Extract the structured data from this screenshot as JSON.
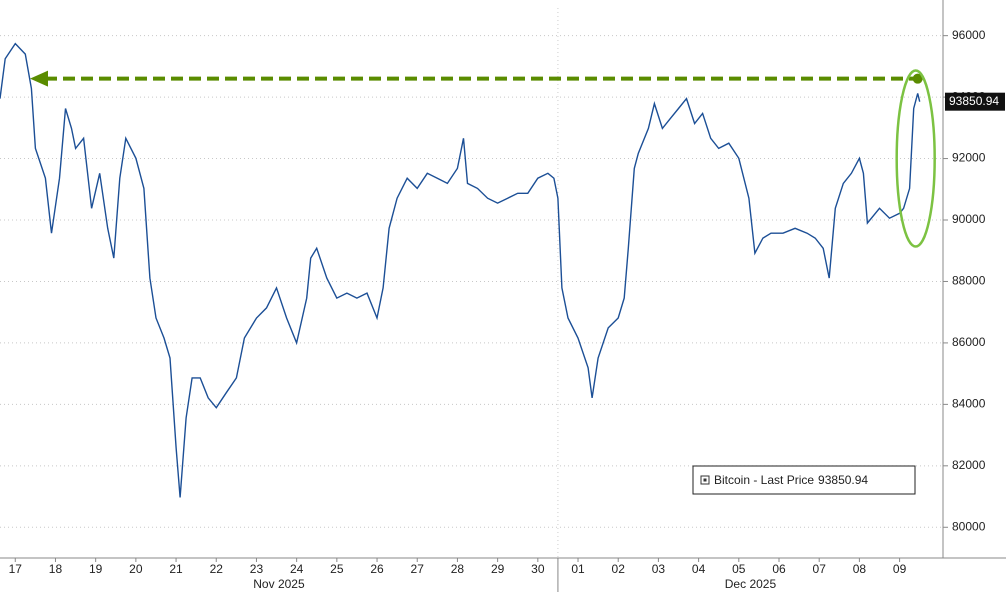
{
  "chart_data": {
    "type": "line",
    "series": [
      {
        "name": "Bitcoin - Last Price",
        "color": "#1c4f96",
        "x": [
          0.12,
          0.25,
          0.5,
          0.75,
          0.9,
          1.0,
          1.25,
          1.4,
          1.6,
          1.75,
          1.9,
          2.0,
          2.2,
          2.4,
          2.6,
          2.8,
          2.95,
          3.1,
          3.25,
          3.5,
          3.7,
          3.85,
          4.0,
          4.2,
          4.35,
          4.5,
          4.6,
          4.75,
          4.9,
          5.1,
          5.3,
          5.5,
          5.75,
          6.0,
          6.2,
          6.5,
          6.75,
          7.0,
          7.25,
          7.5,
          7.75,
          7.85,
          8.0,
          8.25,
          8.5,
          8.75,
          9.0,
          9.25,
          9.5,
          9.65,
          9.8,
          10.0,
          10.25,
          10.5,
          10.75,
          11.0,
          11.25,
          11.5,
          11.65,
          11.75,
          12.0,
          12.25,
          12.5,
          12.75,
          13.0,
          13.25,
          13.5,
          13.75,
          13.9,
          14.0,
          14.1,
          14.25,
          14.5,
          14.75,
          14.85,
          15.0,
          15.25,
          15.5,
          15.65,
          15.75,
          15.9,
          16.0,
          16.25,
          16.4,
          16.6,
          16.8,
          17.0,
          17.2,
          17.4,
          17.6,
          17.8,
          18.0,
          18.25,
          18.5,
          18.75,
          18.9,
          19.1,
          19.3,
          19.6,
          19.9,
          20.2,
          20.4,
          20.6,
          20.75,
          20.9,
          21.1,
          21.3,
          21.5,
          21.6,
          21.7,
          22.0,
          22.25,
          22.5,
          22.6,
          22.75,
          22.85,
          22.95,
          23.0
        ],
        "values": [
          93950,
          95250,
          95740,
          95400,
          94280,
          92330,
          91360,
          89570,
          91360,
          93630,
          92980,
          92330,
          92660,
          90380,
          91520,
          89730,
          88760,
          91360,
          92660,
          92010,
          91030,
          88110,
          86810,
          86160,
          85510,
          82590,
          80970,
          83560,
          84860,
          84860,
          84210,
          83890,
          84380,
          84860,
          86160,
          86810,
          87140,
          87790,
          86810,
          86000,
          87460,
          88760,
          89080,
          88110,
          87460,
          87620,
          87460,
          87620,
          86810,
          87790,
          89730,
          90710,
          91360,
          91030,
          91520,
          91360,
          91190,
          91680,
          92660,
          91190,
          91030,
          90710,
          90550,
          90710,
          90870,
          90870,
          91360,
          91520,
          91360,
          90710,
          87790,
          86810,
          86160,
          85190,
          84210,
          85510,
          86490,
          86810,
          87460,
          89080,
          91680,
          92170,
          92980,
          93790,
          92980,
          93310,
          93630,
          93950,
          93140,
          93470,
          92660,
          92330,
          92500,
          92010,
          90710,
          88920,
          89410,
          89570,
          89570,
          89730,
          89570,
          89410,
          89080,
          88110,
          90380,
          91190,
          91520,
          92010,
          91520,
          89900,
          90380,
          90060,
          90220,
          90380,
          91030,
          93630,
          94120,
          93850.94
        ]
      }
    ],
    "xlim": [
      0.12,
      23.58
    ],
    "ylim": [
      79000,
      96900
    ],
    "yticks": [
      80000,
      82000,
      84000,
      86000,
      88000,
      90000,
      92000,
      94000,
      96000
    ],
    "xticks": [
      {
        "value": 0.5,
        "label": "17"
      },
      {
        "value": 1.5,
        "label": "18"
      },
      {
        "value": 2.5,
        "label": "19"
      },
      {
        "value": 3.5,
        "label": "20"
      },
      {
        "value": 4.5,
        "label": "21"
      },
      {
        "value": 5.5,
        "label": "22"
      },
      {
        "value": 6.5,
        "label": "23"
      },
      {
        "value": 7.5,
        "label": "24"
      },
      {
        "value": 8.5,
        "label": "25"
      },
      {
        "value": 9.5,
        "label": "26"
      },
      {
        "value": 10.5,
        "label": "27"
      },
      {
        "value": 11.5,
        "label": "28"
      },
      {
        "value": 12.5,
        "label": "29"
      },
      {
        "value": 13.5,
        "label": "30"
      },
      {
        "value": 14.5,
        "label": "01"
      },
      {
        "value": 15.5,
        "label": "02"
      },
      {
        "value": 16.5,
        "label": "03"
      },
      {
        "value": 17.5,
        "label": "04"
      },
      {
        "value": 18.5,
        "label": "05"
      },
      {
        "value": 19.5,
        "label": "06"
      },
      {
        "value": 20.5,
        "label": "07"
      },
      {
        "value": 21.5,
        "label": "08"
      },
      {
        "value": 22.5,
        "label": "09"
      }
    ],
    "month_labels": [
      "Nov 2025",
      "Dec 2025"
    ],
    "grid": true,
    "reference_line": {
      "value": 94600,
      "color": "#5a8c00"
    },
    "legend": "bottom-right"
  }
}
